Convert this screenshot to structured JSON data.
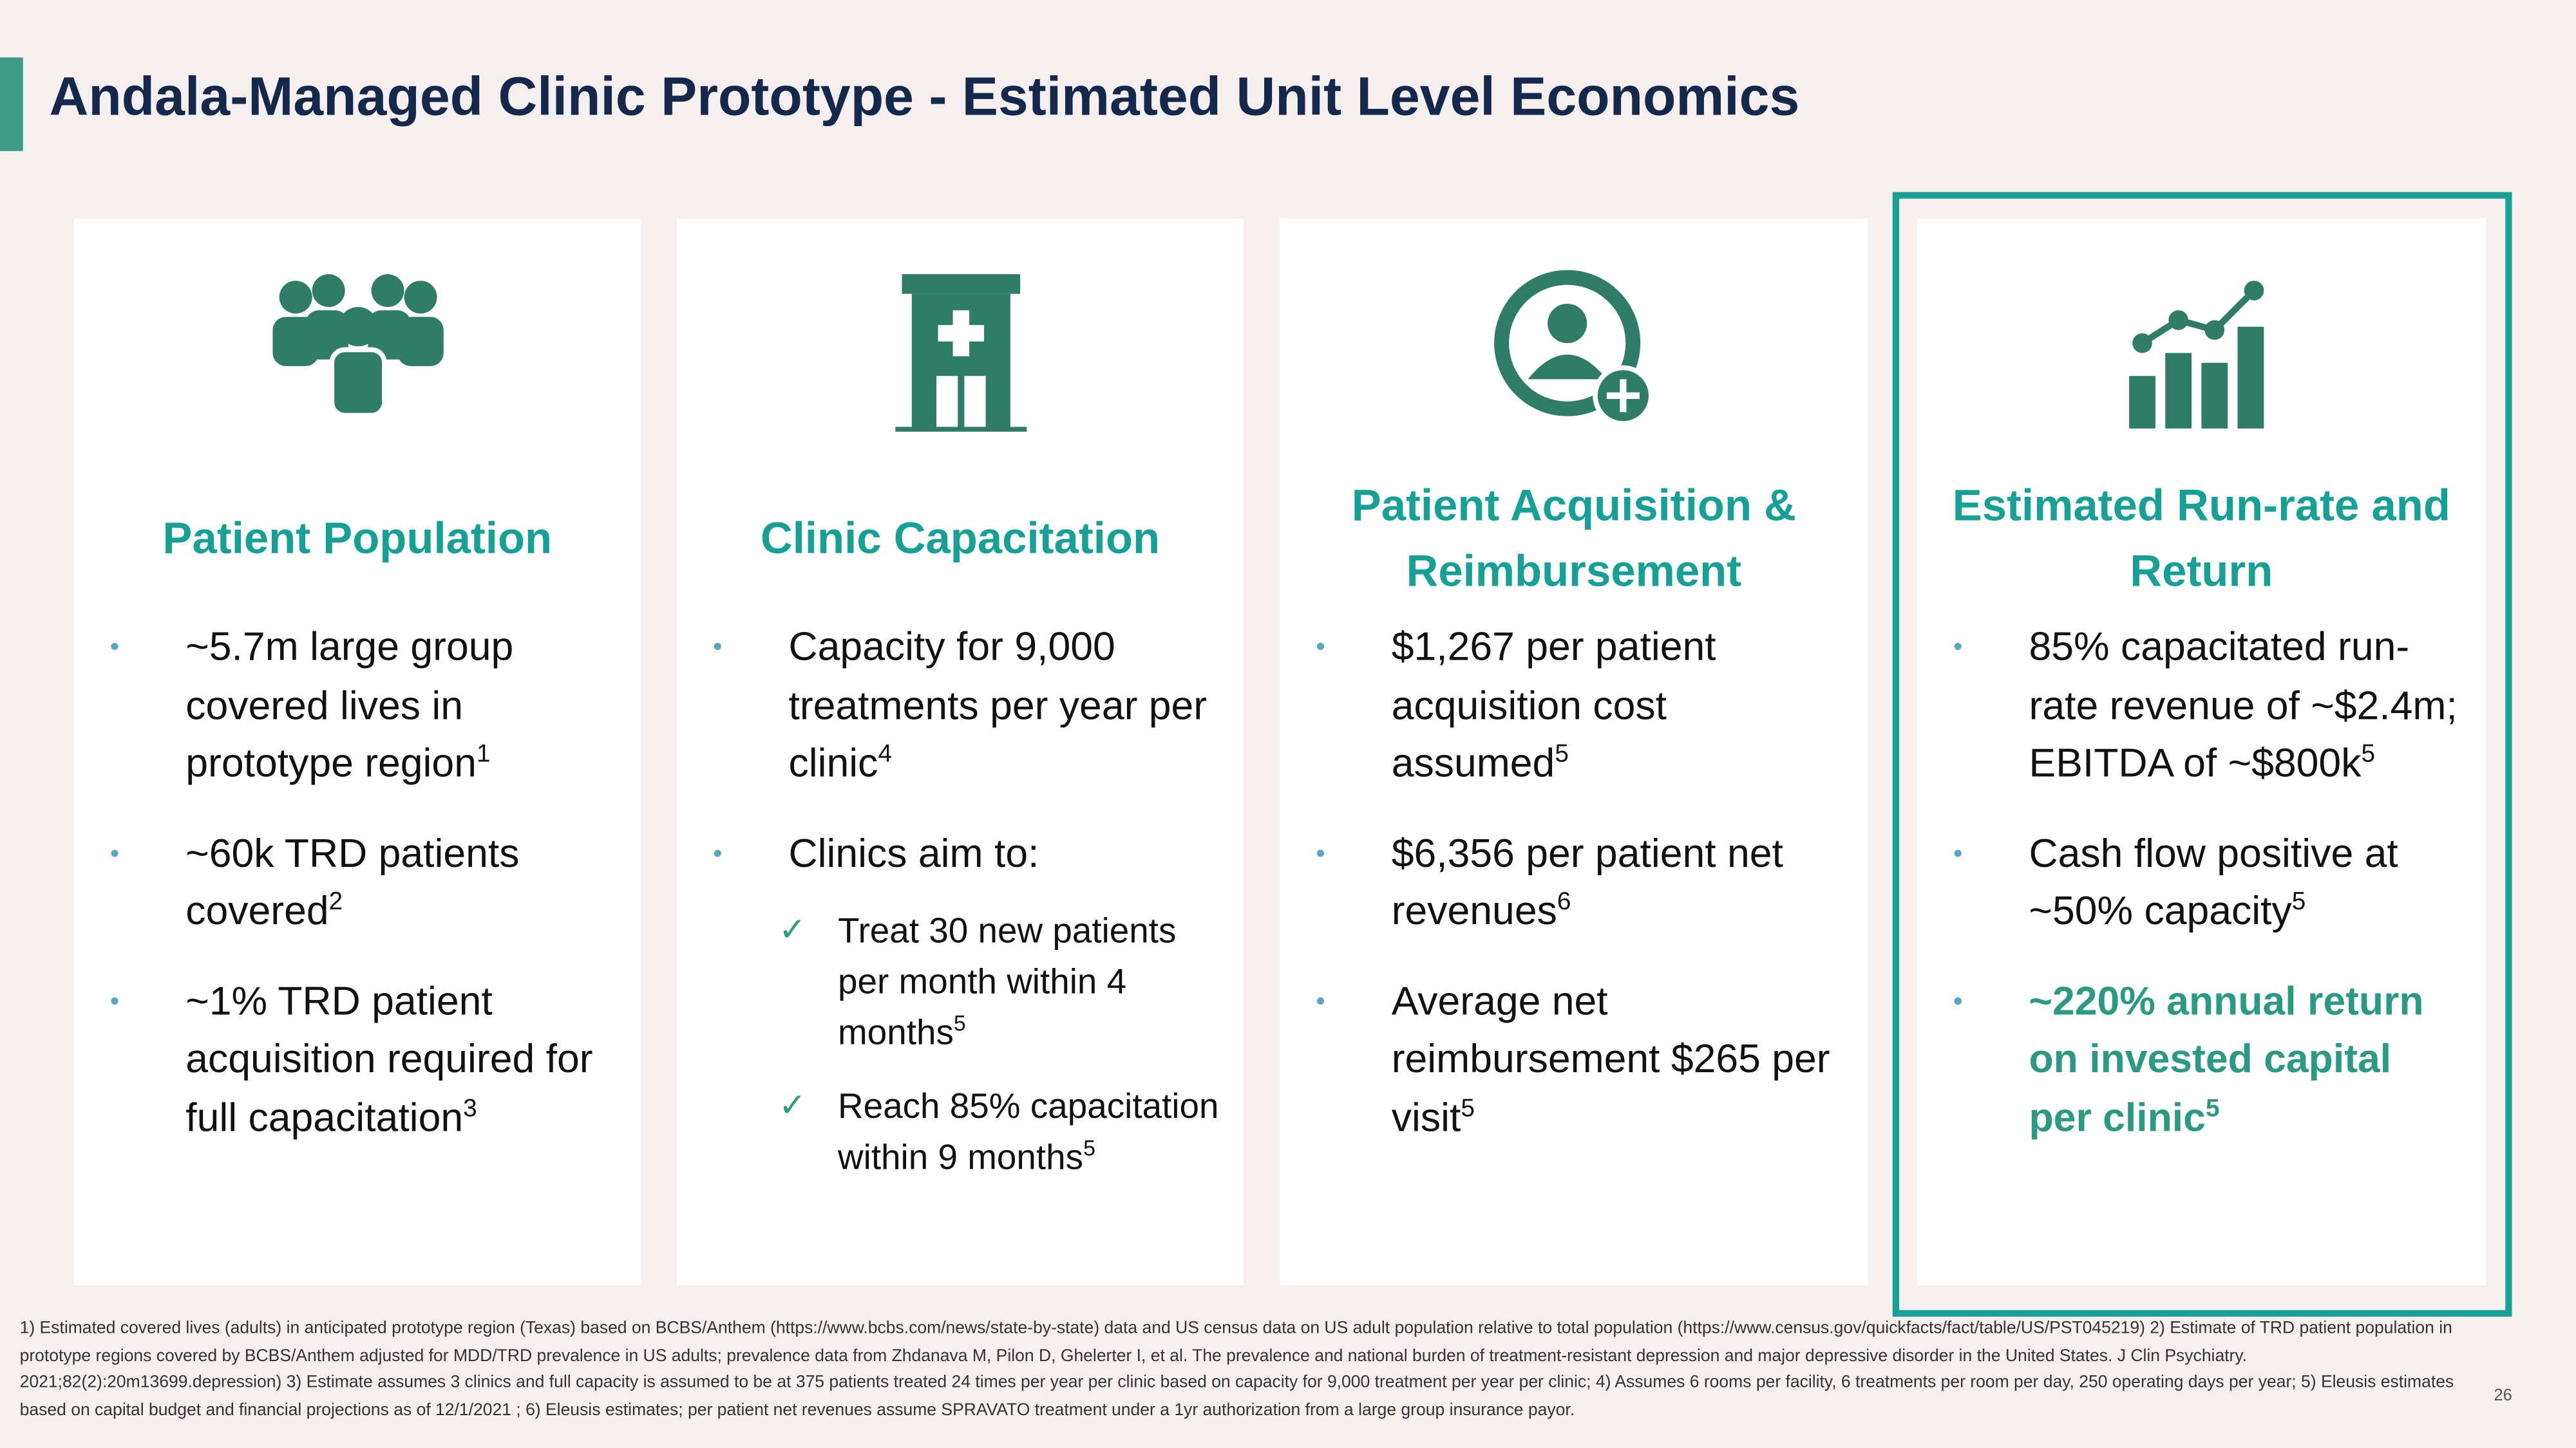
{
  "header": {
    "title": "Andala-Managed Clinic Prototype - Estimated Unit Level Economics"
  },
  "cards": [
    {
      "heading": "Patient Population",
      "bullets": [
        {
          "text": "~5.7m large group covered lives in prototype region",
          "sup": "1"
        },
        {
          "text": "~60k TRD patients covered",
          "sup": "2"
        },
        {
          "text": "~1% TRD patient acquisition required for full capacitation",
          "sup": "3"
        }
      ]
    },
    {
      "heading": "Clinic Capacitation",
      "bullets": [
        {
          "text": "Capacity for 9,000 treatments per year per clinic",
          "sup": "4"
        },
        {
          "text": "Clinics aim to:",
          "checks": [
            {
              "text": "Treat 30 new patients per month within 4 months",
              "sup": "5"
            },
            {
              "text": "Reach 85% capacitation within 9 months",
              "sup": "5"
            }
          ]
        }
      ]
    },
    {
      "heading": "Patient Acquisition & Reimbursement",
      "bullets": [
        {
          "text": "$1,267 per patient acquisition cost assumed",
          "sup": "5"
        },
        {
          "text": "$6,356 per patient net revenues",
          "sup": "6"
        },
        {
          "text": "Average net reimbursement $265 per visit",
          "sup": "5"
        }
      ]
    },
    {
      "heading": "Estimated Run-rate and Return",
      "bullets": [
        {
          "text": "85% capacitated run-rate revenue of ~$2.4m; EBITDA of ~$800k",
          "sup": "5"
        },
        {
          "text": "Cash flow positive at ~50% capacity",
          "sup": "5"
        },
        {
          "text": "~220% annual return on invested capital per clinic",
          "sup": "5",
          "highlight": true
        }
      ]
    }
  ],
  "footnote": "1) Estimated covered lives (adults) in anticipated prototype region (Texas) based on BCBS/Anthem  (https://www.bcbs.com/news/state-by-state) data and US census data on US adult population relative to total population (https://www.census.gov/quickfacts/fact/table/US/PST045219)  2) Estimate of TRD patient population in prototype regions covered by BCBS/Anthem adjusted for MDD/TRD prevalence in US adults; prevalence data from Zhdanava M, Pilon D, Ghelerter I, et al. The prevalence and national burden of treatment-resistant depression and major depressive disorder in the United States. J Clin Psychiatry. 2021;82(2):20m13699.depression) 3)  Estimate assumes 3 clinics and full capacity is assumed to be at 375 patients treated 24 times per year per clinic based on capacity for 9,000 treatment per year per clinic; 4) Assumes 6 rooms per facility, 6 treatments per room per day, 250 operating days per year; 5) Eleusis estimates based on capital budget and financial projections as of 12/1/2021 ; 6) Eleusis estimates; per patient net revenues assume SPRAVATO treatment under a 1yr authorization from a large group insurance payor.",
  "page_number": "26"
}
